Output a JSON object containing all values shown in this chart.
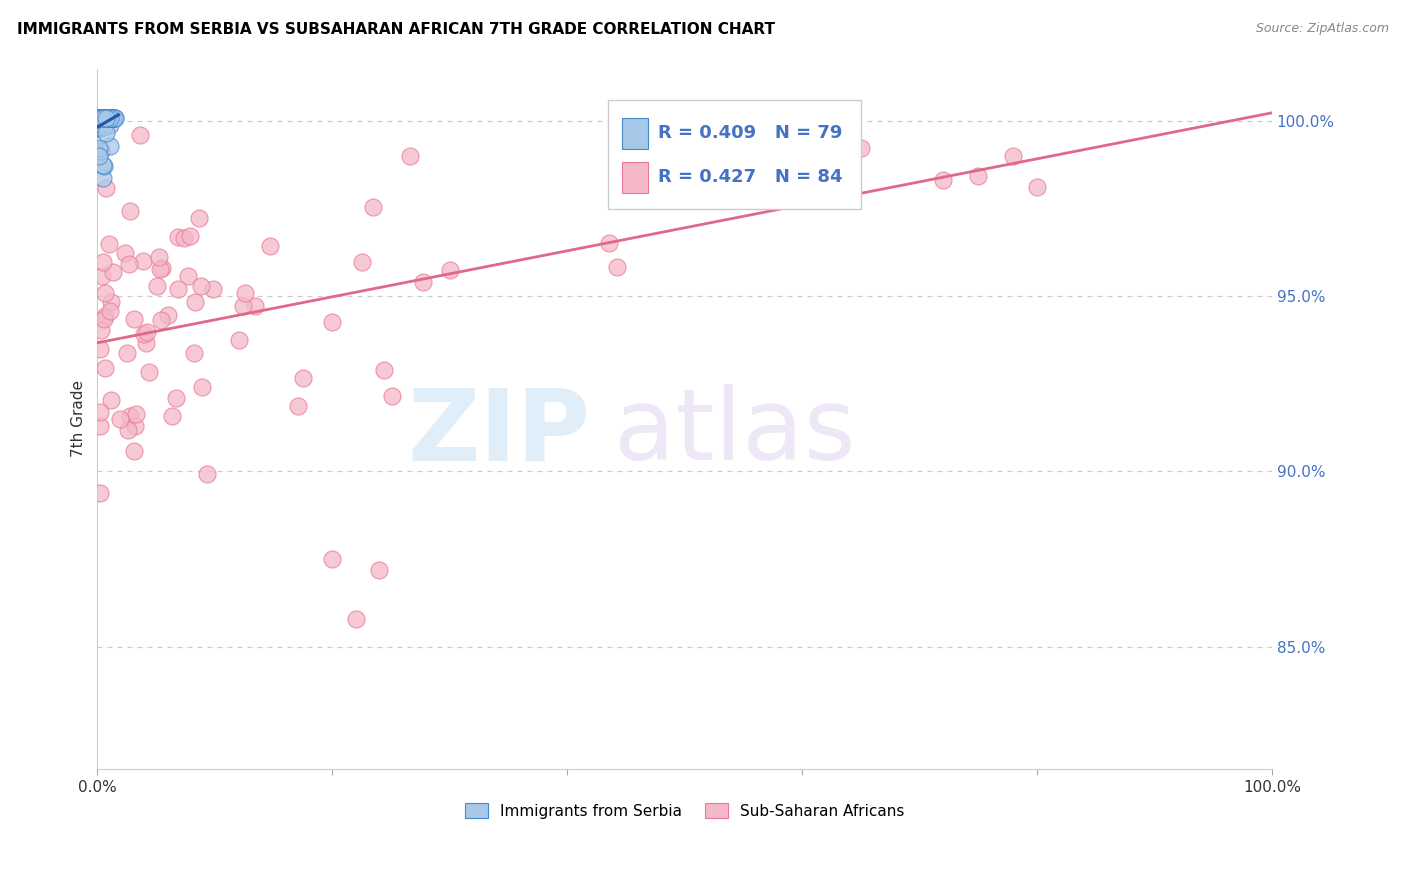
{
  "title": "IMMIGRANTS FROM SERBIA VS SUBSAHARAN AFRICAN 7TH GRADE CORRELATION CHART",
  "source": "Source: ZipAtlas.com",
  "ylabel": "7th Grade",
  "serbia_R": 0.409,
  "serbia_N": 79,
  "subsaharan_R": 0.427,
  "subsaharan_N": 84,
  "serbia_color": "#a8c8e8",
  "subsaharan_color": "#f4b8c8",
  "serbia_edge_color": "#4488cc",
  "subsaharan_edge_color": "#e87898",
  "serbia_line_color": "#2255aa",
  "subsaharan_line_color": "#e06888",
  "legend_label_serbia": "Immigrants from Serbia",
  "legend_label_subsaharan": "Sub-Saharan Africans",
  "right_tick_color": "#4472c4",
  "grid_color": "#cccccc",
  "ytick_vals": [
    1.0,
    0.95,
    0.9,
    0.85
  ],
  "ytick_labels": [
    "100.0%",
    "95.0%",
    "90.0%",
    "85.0%"
  ],
  "xlim": [
    0.0,
    1.0
  ],
  "ylim": [
    0.815,
    1.015
  ],
  "watermark_zip_color": "#cce4f5",
  "watermark_atlas_color": "#ddd0ee"
}
